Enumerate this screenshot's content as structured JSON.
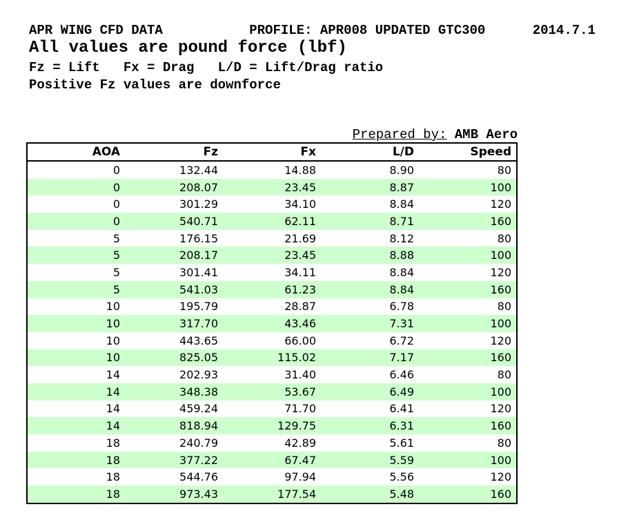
{
  "header": {
    "line1": "APR WING CFD DATA           PROFILE: APR008 UPDATED GTC300      2014.7.1",
    "line2": "All values are pound force (lbf)",
    "line3": "Fz = Lift   Fx = Drag   L/D = Lift/Drag ratio",
    "line4": "Positive Fz values are downforce"
  },
  "prepared_by": {
    "label": "Prepared by:",
    "value": "AMB Aero"
  },
  "table": {
    "headers": [
      "AOA",
      "Fz",
      "Fx",
      "L/D",
      "Speed"
    ],
    "rows": [
      [
        "0",
        "132.44",
        "14.88",
        "8.90",
        "80"
      ],
      [
        "0",
        "208.07",
        "23.45",
        "8.87",
        "100"
      ],
      [
        "0",
        "301.29",
        "34.10",
        "8.84",
        "120"
      ],
      [
        "0",
        "540.71",
        "62.11",
        "8.71",
        "160"
      ],
      [
        "5",
        "176.15",
        "21.69",
        "8.12",
        "80"
      ],
      [
        "5",
        "208.17",
        "23.45",
        "8.88",
        "100"
      ],
      [
        "5",
        "301.41",
        "34.11",
        "8.84",
        "120"
      ],
      [
        "5",
        "541.03",
        "61.23",
        "8.84",
        "160"
      ],
      [
        "10",
        "195.79",
        "28.87",
        "6.78",
        "80"
      ],
      [
        "10",
        "317.70",
        "43.46",
        "7.31",
        "100"
      ],
      [
        "10",
        "443.65",
        "66.00",
        "6.72",
        "120"
      ],
      [
        "10",
        "825.05",
        "115.02",
        "7.17",
        "160"
      ],
      [
        "14",
        "202.93",
        "31.40",
        "6.46",
        "80"
      ],
      [
        "14",
        "348.38",
        "53.67",
        "6.49",
        "100"
      ],
      [
        "14",
        "459.24",
        "71.70",
        "6.41",
        "120"
      ],
      [
        "14",
        "818.94",
        "129.75",
        "6.31",
        "160"
      ],
      [
        "18",
        "240.79",
        "42.89",
        "5.61",
        "80"
      ],
      [
        "18",
        "377.22",
        "67.47",
        "5.59",
        "100"
      ],
      [
        "18",
        "544.76",
        "97.94",
        "5.56",
        "120"
      ],
      [
        "18",
        "973.43",
        "177.54",
        "5.48",
        "160"
      ]
    ]
  },
  "colors": {
    "alt_row_green": "#ccffcc",
    "border": "#000000",
    "page_background": "#ffffff",
    "text": "#000000"
  }
}
